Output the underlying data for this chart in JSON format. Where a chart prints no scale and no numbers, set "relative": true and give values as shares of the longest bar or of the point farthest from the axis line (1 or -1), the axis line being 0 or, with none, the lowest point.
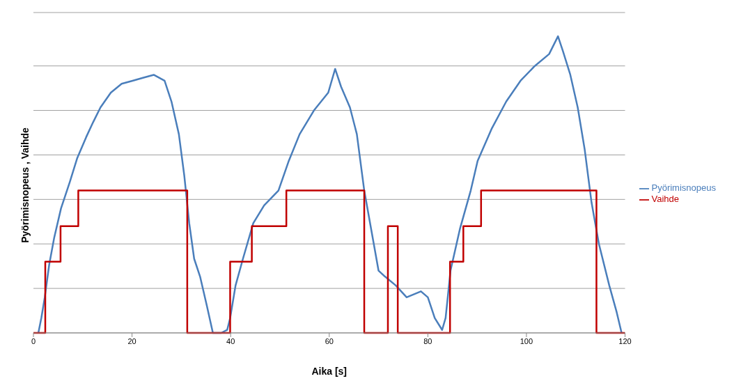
{
  "chart_data": {
    "type": "line",
    "relative": true,
    "xlabel": "Aika [s]",
    "ylabel": "Pyörimisnopeus , Vaihde",
    "xlim": [
      0,
      120
    ],
    "xticks": [
      0,
      20,
      40,
      60,
      80,
      100,
      120
    ],
    "grid": "y",
    "legend": "right",
    "marker": "none",
    "series": [
      {
        "name": "Pyörimisnopeus",
        "color": "#4a7ebb",
        "x": [
          1.0,
          1.6,
          2.3,
          3.2,
          4.2,
          5.6,
          7.4,
          8.9,
          10.7,
          12.1,
          13.6,
          15.7,
          17.9,
          20.1,
          22.2,
          24.4,
          26.6,
          28.0,
          29.5,
          30.6,
          31.6,
          32.6,
          33.8,
          35.2,
          36.4,
          38.1,
          39.3,
          39.9,
          41.0,
          42.5,
          44.6,
          46.8,
          49.7,
          51.8,
          54.0,
          56.9,
          59.8,
          61.2,
          62.4,
          64.2,
          65.6,
          67.1,
          68.5,
          70.0,
          71.3,
          73.5,
          75.7,
          78.6,
          80.0,
          81.4,
          82.9,
          83.6,
          84.6,
          86.5,
          88.7,
          90.1,
          93.0,
          95.9,
          98.8,
          101.7,
          104.6,
          106.4,
          107.4,
          108.9,
          110.4,
          111.8,
          113.2,
          114.7,
          116.8,
          118.3,
          119.3
        ],
        "values": [
          0,
          0.05,
          0.12,
          0.23,
          0.32,
          0.42,
          0.51,
          0.59,
          0.66,
          0.71,
          0.76,
          0.81,
          0.84,
          0.85,
          0.86,
          0.87,
          0.85,
          0.78,
          0.67,
          0.53,
          0.37,
          0.25,
          0.19,
          0.09,
          0,
          0,
          0.01,
          0.05,
          0.16,
          0.25,
          0.37,
          0.43,
          0.48,
          0.58,
          0.67,
          0.75,
          0.81,
          0.89,
          0.83,
          0.76,
          0.67,
          0.48,
          0.35,
          0.21,
          0.19,
          0.16,
          0.12,
          0.14,
          0.12,
          0.05,
          0.01,
          0.05,
          0.21,
          0.35,
          0.48,
          0.58,
          0.69,
          0.78,
          0.85,
          0.9,
          0.94,
          1,
          0.95,
          0.87,
          0.76,
          0.62,
          0.44,
          0.3,
          0.16,
          0.07,
          0
        ]
      },
      {
        "name": "Vaihde",
        "type": "step",
        "color": "#c00000",
        "x": [
          0,
          2.4,
          5.5,
          9.1,
          31.2,
          39.9,
          44.3,
          51.3,
          67.1,
          71.9,
          73.9,
          84.5,
          87.2,
          90.8,
          114.2,
          120
        ],
        "values": [
          0,
          0.24,
          0.36,
          0.48,
          0,
          0.24,
          0.36,
          0.48,
          0,
          0.36,
          0,
          0.24,
          0.36,
          0.48,
          0,
          0
        ]
      }
    ]
  }
}
